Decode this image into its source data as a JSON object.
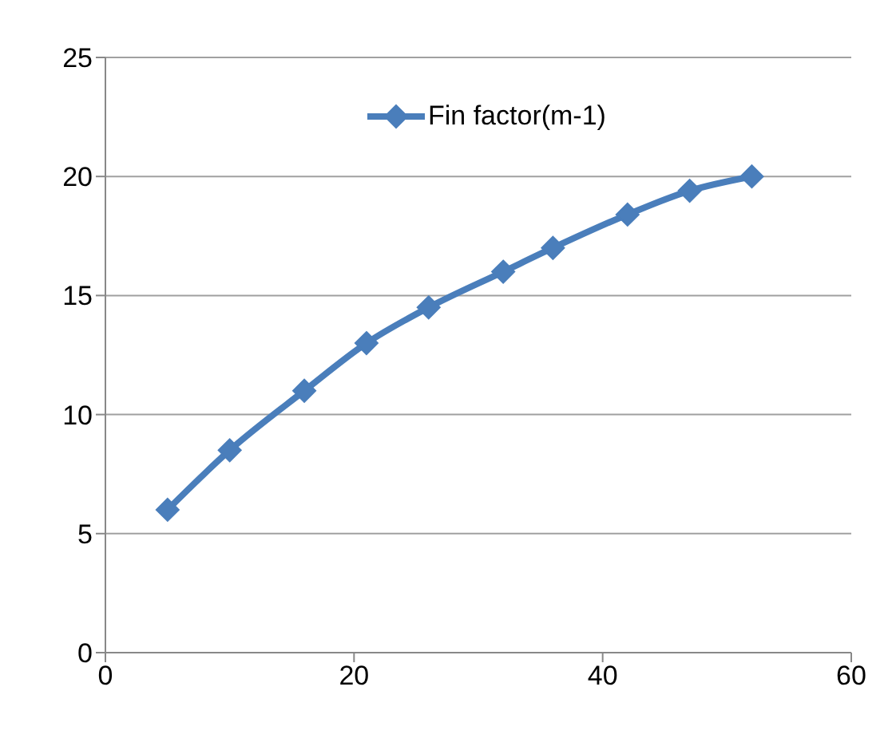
{
  "chart_data": {
    "type": "line",
    "x": [
      5,
      10,
      16,
      21,
      26,
      32,
      36,
      42,
      47,
      52
    ],
    "series": [
      {
        "name": "Fin factor(m-1)",
        "color": "#4a7ebb",
        "values": [
          6,
          8.5,
          11,
          13,
          14.5,
          16,
          17,
          18.4,
          19.4,
          20
        ]
      }
    ],
    "xlim": [
      0,
      60
    ],
    "xticks": [
      0,
      20,
      40,
      60
    ],
    "ylim": [
      0,
      25
    ],
    "yticks": [
      0,
      5,
      10,
      15,
      20,
      25
    ],
    "grid": "y",
    "legend": "top",
    "marker": "diamond",
    "line_style": "solid"
  }
}
